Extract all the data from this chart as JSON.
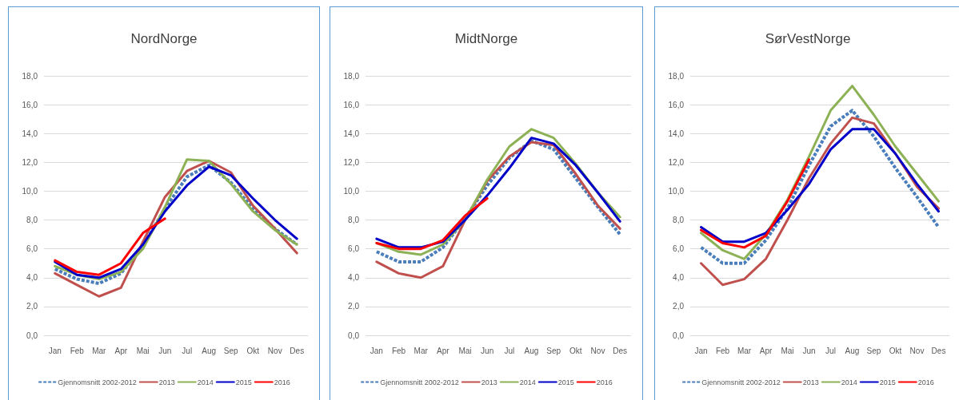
{
  "chart_data": [
    {
      "type": "line",
      "title": "NordNorge",
      "categories": [
        "Jan",
        "Feb",
        "Mar",
        "Apr",
        "Mai",
        "Jun",
        "Jul",
        "Aug",
        "Sep",
        "Okt",
        "Nov",
        "Des"
      ],
      "ylim": [
        0,
        18
      ],
      "yticks": [
        {
          "value": 0,
          "label": "0,0"
        },
        {
          "value": 2,
          "label": "2,0"
        },
        {
          "value": 4,
          "label": "4,0"
        },
        {
          "value": 6,
          "label": "6,0"
        },
        {
          "value": 8,
          "label": "8,0"
        },
        {
          "value": 10,
          "label": "10,0"
        },
        {
          "value": 12,
          "label": "12,0"
        },
        {
          "value": 14,
          "label": "14,0"
        },
        {
          "value": 16,
          "label": "16,0"
        },
        {
          "value": 18,
          "label": "18,0"
        }
      ],
      "grid": "y",
      "legend": "bottom",
      "marker": "none",
      "series": [
        {
          "name": "Gjennomsnitt 2002-2012",
          "color": "#4a7ebb",
          "line_style": "dashed",
          "values": [
            4.6,
            3.9,
            3.6,
            4.3,
            6.2,
            8.8,
            11.0,
            11.8,
            10.6,
            8.8,
            7.4,
            6.3
          ]
        },
        {
          "name": "2013",
          "color": "#c0504d",
          "values": [
            4.3,
            3.5,
            2.7,
            3.3,
            6.5,
            9.6,
            11.4,
            12.1,
            11.3,
            9.0,
            7.4,
            5.7
          ]
        },
        {
          "name": "2014",
          "color": "#8db255",
          "values": [
            4.8,
            4.2,
            3.9,
            4.4,
            6.0,
            8.9,
            12.2,
            12.1,
            10.5,
            8.6,
            7.3,
            6.3
          ]
        },
        {
          "name": "2015",
          "color": "#0000c8",
          "values": [
            5.1,
            4.2,
            4.0,
            4.6,
            6.3,
            8.6,
            10.4,
            11.7,
            11.1,
            9.5,
            8.0,
            6.7
          ]
        },
        {
          "name": "2016",
          "color": "#ff0000",
          "values": [
            5.2,
            4.4,
            4.2,
            5.0,
            7.1,
            8.1,
            null,
            null,
            null,
            null,
            null,
            null
          ]
        }
      ]
    },
    {
      "type": "line",
      "title": "MidtNorge",
      "categories": [
        "Jan",
        "Feb",
        "Mar",
        "Apr",
        "Mai",
        "Jun",
        "Jul",
        "Aug",
        "Sep",
        "Okt",
        "Nov",
        "Des"
      ],
      "ylim": [
        0,
        18
      ],
      "yticks": [
        {
          "value": 0,
          "label": "0,0"
        },
        {
          "value": 2,
          "label": "2,0"
        },
        {
          "value": 4,
          "label": "4,0"
        },
        {
          "value": 6,
          "label": "6,0"
        },
        {
          "value": 8,
          "label": "8,0"
        },
        {
          "value": 10,
          "label": "10,0"
        },
        {
          "value": 12,
          "label": "12,0"
        },
        {
          "value": 14,
          "label": "14,0"
        },
        {
          "value": 16,
          "label": "16,0"
        },
        {
          "value": 18,
          "label": "18,0"
        }
      ],
      "grid": "y",
      "legend": "bottom",
      "marker": "none",
      "series": [
        {
          "name": "Gjennomsnitt 2002-2012",
          "color": "#4a7ebb",
          "line_style": "dashed",
          "values": [
            5.8,
            5.1,
            5.1,
            6.1,
            8.1,
            10.4,
            12.3,
            13.5,
            12.9,
            10.9,
            8.9,
            7.0
          ]
        },
        {
          "name": "2013",
          "color": "#c0504d",
          "values": [
            5.1,
            4.3,
            4.0,
            4.8,
            8.0,
            10.7,
            12.4,
            13.4,
            13.2,
            11.2,
            9.0,
            7.4
          ]
        },
        {
          "name": "2014",
          "color": "#8db255",
          "values": [
            6.4,
            5.8,
            5.6,
            6.3,
            8.0,
            10.8,
            13.1,
            14.3,
            13.7,
            11.9,
            9.9,
            8.2
          ]
        },
        {
          "name": "2015",
          "color": "#0000c8",
          "values": [
            6.7,
            6.1,
            6.1,
            6.5,
            8.0,
            9.7,
            11.6,
            13.7,
            13.3,
            11.8,
            9.9,
            7.9
          ]
        },
        {
          "name": "2016",
          "color": "#ff0000",
          "values": [
            6.4,
            6.0,
            6.0,
            6.6,
            8.3,
            9.5,
            null,
            null,
            null,
            null,
            null,
            null
          ]
        }
      ]
    },
    {
      "type": "line",
      "title": "SørVestNorge",
      "categories": [
        "Jan",
        "Feb",
        "Mar",
        "Apr",
        "Mai",
        "Jun",
        "Jul",
        "Aug",
        "Sep",
        "Okt",
        "Nov",
        "Des"
      ],
      "ylim": [
        0,
        18
      ],
      "yticks": [
        {
          "value": 0,
          "label": "0,0"
        },
        {
          "value": 2,
          "label": "2,0"
        },
        {
          "value": 4,
          "label": "4,0"
        },
        {
          "value": 6,
          "label": "6,0"
        },
        {
          "value": 8,
          "label": "8,0"
        },
        {
          "value": 10,
          "label": "10,0"
        },
        {
          "value": 12,
          "label": "12,0"
        },
        {
          "value": 14,
          "label": "14,0"
        },
        {
          "value": 16,
          "label": "16,0"
        },
        {
          "value": 18,
          "label": "18,0"
        }
      ],
      "grid": "y",
      "legend": "bottom",
      "marker": "none",
      "series": [
        {
          "name": "Gjennomsnitt 2002-2012",
          "color": "#4a7ebb",
          "line_style": "dashed",
          "values": [
            6.1,
            5.0,
            5.0,
            6.6,
            8.8,
            11.8,
            14.5,
            15.6,
            13.8,
            11.6,
            9.6,
            7.5
          ]
        },
        {
          "name": "2013",
          "color": "#c0504d",
          "values": [
            5.0,
            3.5,
            3.9,
            5.3,
            8.0,
            10.9,
            13.3,
            15.1,
            14.7,
            12.6,
            10.3,
            8.8
          ]
        },
        {
          "name": "2014",
          "color": "#8db255",
          "values": [
            7.1,
            5.9,
            5.3,
            7.0,
            9.4,
            12.4,
            15.6,
            17.3,
            15.3,
            13.1,
            11.2,
            9.3
          ]
        },
        {
          "name": "2015",
          "color": "#0000c8",
          "values": [
            7.5,
            6.5,
            6.5,
            7.1,
            8.7,
            10.5,
            12.9,
            14.3,
            14.3,
            12.6,
            10.5,
            8.6
          ]
        },
        {
          "name": "2016",
          "color": "#ff0000",
          "values": [
            7.3,
            6.4,
            6.1,
            6.9,
            9.3,
            12.2,
            null,
            null,
            null,
            null,
            null,
            null
          ]
        }
      ]
    }
  ]
}
